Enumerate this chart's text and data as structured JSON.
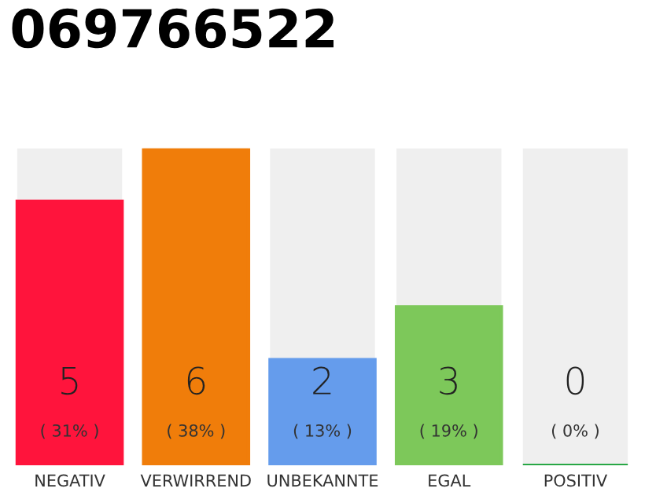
{
  "chart_data": {
    "type": "bar",
    "title": "069766522",
    "categories": [
      "NEGATIV",
      "VERWIRREND",
      "UNBEKANNTE",
      "EGAL",
      "POSITIV"
    ],
    "values": [
      5,
      6,
      2,
      3,
      0
    ],
    "colors": [
      "#ff143c",
      "#f07d0a",
      "#659cec",
      "#7dc85a",
      "#28a745"
    ],
    "value_labels": [
      "5\n( 31% )",
      "6\n( 38% )",
      "2\n( 13% )",
      "3\n( 19% )",
      "0\n( 0% )"
    ],
    "ylim": [
      0,
      6
    ],
    "grid": false,
    "legend": false
  }
}
